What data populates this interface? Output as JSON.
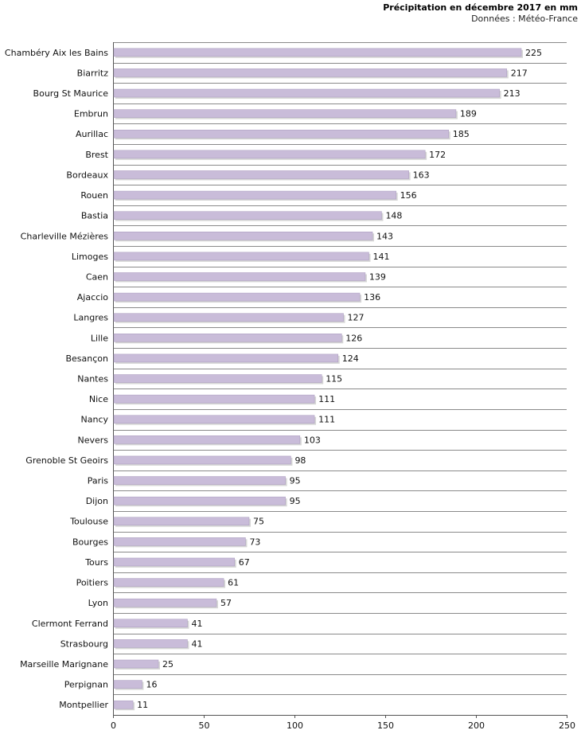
{
  "chart_data": {
    "type": "bar",
    "orientation": "horizontal",
    "title": "Précipitation en décembre 2017 en mm",
    "subtitle": "Données : Météo-France",
    "xlabel": "",
    "ylabel": "",
    "xlim": [
      0,
      250
    ],
    "xticks": [
      "0",
      "50",
      "100",
      "150",
      "200",
      "250"
    ],
    "grid": "horizontal",
    "bar_color": "#c9bcd9",
    "categories": [
      "Chambéry Aix les Bains",
      "Biarritz",
      "Bourg St Maurice",
      "Embrun",
      "Aurillac",
      "Brest",
      "Bordeaux",
      "Rouen",
      "Bastia",
      "Charleville Mézières",
      "Limoges",
      "Caen",
      "Ajaccio",
      "Langres",
      "Lille",
      "Besançon",
      "Nantes",
      "Nice",
      "Nancy",
      "Nevers",
      "Grenoble St Geoirs",
      "Paris",
      "Dijon",
      "Toulouse",
      "Bourges",
      "Tours",
      "Poitiers",
      "Lyon",
      "Clermont Ferrand",
      "Strasbourg",
      "Marseille Marignane",
      "Perpignan",
      "Montpellier"
    ],
    "values": [
      225,
      217,
      213,
      189,
      185,
      172,
      163,
      156,
      148,
      143,
      141,
      139,
      136,
      127,
      126,
      124,
      115,
      111,
      111,
      103,
      98,
      95,
      95,
      75,
      73,
      67,
      61,
      57,
      41,
      41,
      25,
      16,
      11
    ]
  }
}
